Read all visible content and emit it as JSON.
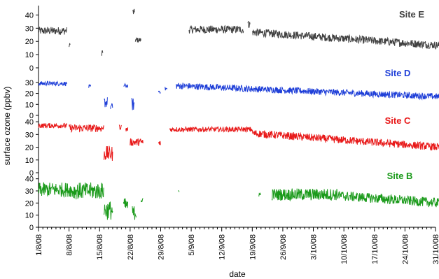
{
  "chart_data": {
    "type": "line",
    "ylabel": "surface ozone (ppbv)",
    "xlabel": "date",
    "x_range": [
      "1/8/08",
      "31/10/08"
    ],
    "x_ticklabels": [
      "1/8/08",
      "8/8/08",
      "15/8/08",
      "22/8/08",
      "29/8/08",
      "5/9/08",
      "12/9/08",
      "19/9/08",
      "26/9/08",
      "3/10/08",
      "10/10/08",
      "17/10/08",
      "24/10/08",
      "31/10/08"
    ],
    "x_tick_days": [
      0,
      7,
      14,
      21,
      28,
      35,
      42,
      49,
      56,
      63,
      70,
      77,
      84,
      91
    ],
    "grid": false,
    "legend": "none",
    "panels": [
      {
        "name": "Site E",
        "color": "#404040",
        "ylim": [
          0,
          45
        ],
        "yticks": [
          "0",
          "10",
          "20",
          "30",
          "40"
        ],
        "ytick_values": [
          0,
          10,
          20,
          30,
          40
        ],
        "segments": [
          {
            "start": 0.0,
            "end": 6.5,
            "mean": 28,
            "amp": 3
          },
          {
            "start": 7.0,
            "end": 7.3,
            "mean": 17,
            "amp": 2
          },
          {
            "start": 14.5,
            "end": 14.8,
            "mean": 12,
            "amp": 3
          },
          {
            "start": 21.6,
            "end": 22.0,
            "mean": 42,
            "amp": 3
          },
          {
            "start": 22.2,
            "end": 23.5,
            "mean": 21,
            "amp": 2
          },
          {
            "start": 34.5,
            "end": 47.0,
            "mean": 29,
            "amp": 3
          },
          {
            "start": 48.0,
            "end": 48.5,
            "mean": 33,
            "amp": 3
          },
          {
            "start": 49.0,
            "end": 92.0,
            "mean_start": 27,
            "mean_end": 17,
            "amp": 3
          }
        ]
      },
      {
        "name": "Site D",
        "color": "#1f3fd8",
        "ylim": [
          0,
          35
        ],
        "yticks": [
          "0",
          "10",
          "20",
          "30"
        ],
        "ytick_values": [
          0,
          10,
          20,
          30
        ],
        "segments": [
          {
            "start": 0.0,
            "end": 6.5,
            "mean": 29,
            "amp": 2
          },
          {
            "start": 11.5,
            "end": 12.0,
            "mean": 26,
            "amp": 2
          },
          {
            "start": 15.0,
            "end": 15.8,
            "mean": 12,
            "amp": 5
          },
          {
            "start": 16.5,
            "end": 17.0,
            "mean": 8,
            "amp": 3
          },
          {
            "start": 19.5,
            "end": 20.5,
            "mean": 27,
            "amp": 2
          },
          {
            "start": 21.3,
            "end": 22.0,
            "mean": 10,
            "amp": 6
          },
          {
            "start": 27.5,
            "end": 28.0,
            "mean": 22,
            "amp": 2
          },
          {
            "start": 29.0,
            "end": 29.5,
            "mean": 24,
            "amp": 2
          },
          {
            "start": 31.5,
            "end": 92.0,
            "mean_start": 27,
            "mean_end": 17,
            "amp": 3
          }
        ]
      },
      {
        "name": "Site C",
        "color": "#e81919",
        "ylim": [
          0,
          45
        ],
        "yticks": [
          "0",
          "10",
          "20",
          "30",
          "40"
        ],
        "ytick_values": [
          0,
          10,
          20,
          30,
          40
        ],
        "segments": [
          {
            "start": 0.0,
            "end": 6.5,
            "mean": 37,
            "amp": 2
          },
          {
            "start": 7.0,
            "end": 15.0,
            "mean": 35,
            "amp": 3
          },
          {
            "start": 15.0,
            "end": 17.0,
            "mean": 15,
            "amp": 6
          },
          {
            "start": 18.5,
            "end": 19.0,
            "mean": 36,
            "amp": 2
          },
          {
            "start": 20.0,
            "end": 20.5,
            "mean": 34,
            "amp": 2
          },
          {
            "start": 21.0,
            "end": 24.0,
            "mean": 24,
            "amp": 3
          },
          {
            "start": 27.5,
            "end": 28.0,
            "mean": 23,
            "amp": 2
          },
          {
            "start": 30.0,
            "end": 49.0,
            "mean": 34,
            "amp": 2
          },
          {
            "start": 49.0,
            "end": 92.0,
            "mean_start": 31,
            "mean_end": 20,
            "amp": 3
          }
        ]
      },
      {
        "name": "Site B",
        "color": "#1a9a1a",
        "ylim": [
          0,
          45
        ],
        "yticks": [
          "0",
          "10",
          "20",
          "30",
          "40"
        ],
        "ytick_values": [
          0,
          10,
          20,
          30,
          40
        ],
        "segments": [
          {
            "start": 0.0,
            "end": 7.5,
            "mean": 31,
            "amp": 6
          },
          {
            "start": 7.5,
            "end": 15.0,
            "mean": 30,
            "amp": 7
          },
          {
            "start": 15.0,
            "end": 17.0,
            "mean": 14,
            "amp": 8
          },
          {
            "start": 19.5,
            "end": 20.5,
            "mean": 18,
            "amp": 6
          },
          {
            "start": 21.5,
            "end": 22.5,
            "mean": 12,
            "amp": 6
          },
          {
            "start": 23.5,
            "end": 24.0,
            "mean": 22,
            "amp": 2
          },
          {
            "start": 32.0,
            "end": 32.3,
            "mean": 30,
            "amp": 1
          },
          {
            "start": 50.5,
            "end": 51.0,
            "mean": 27,
            "amp": 2
          },
          {
            "start": 53.5,
            "end": 69.0,
            "mean": 27,
            "amp": 5
          },
          {
            "start": 69.0,
            "end": 92.0,
            "mean_start": 26,
            "mean_end": 20,
            "amp": 4
          }
        ]
      }
    ]
  }
}
